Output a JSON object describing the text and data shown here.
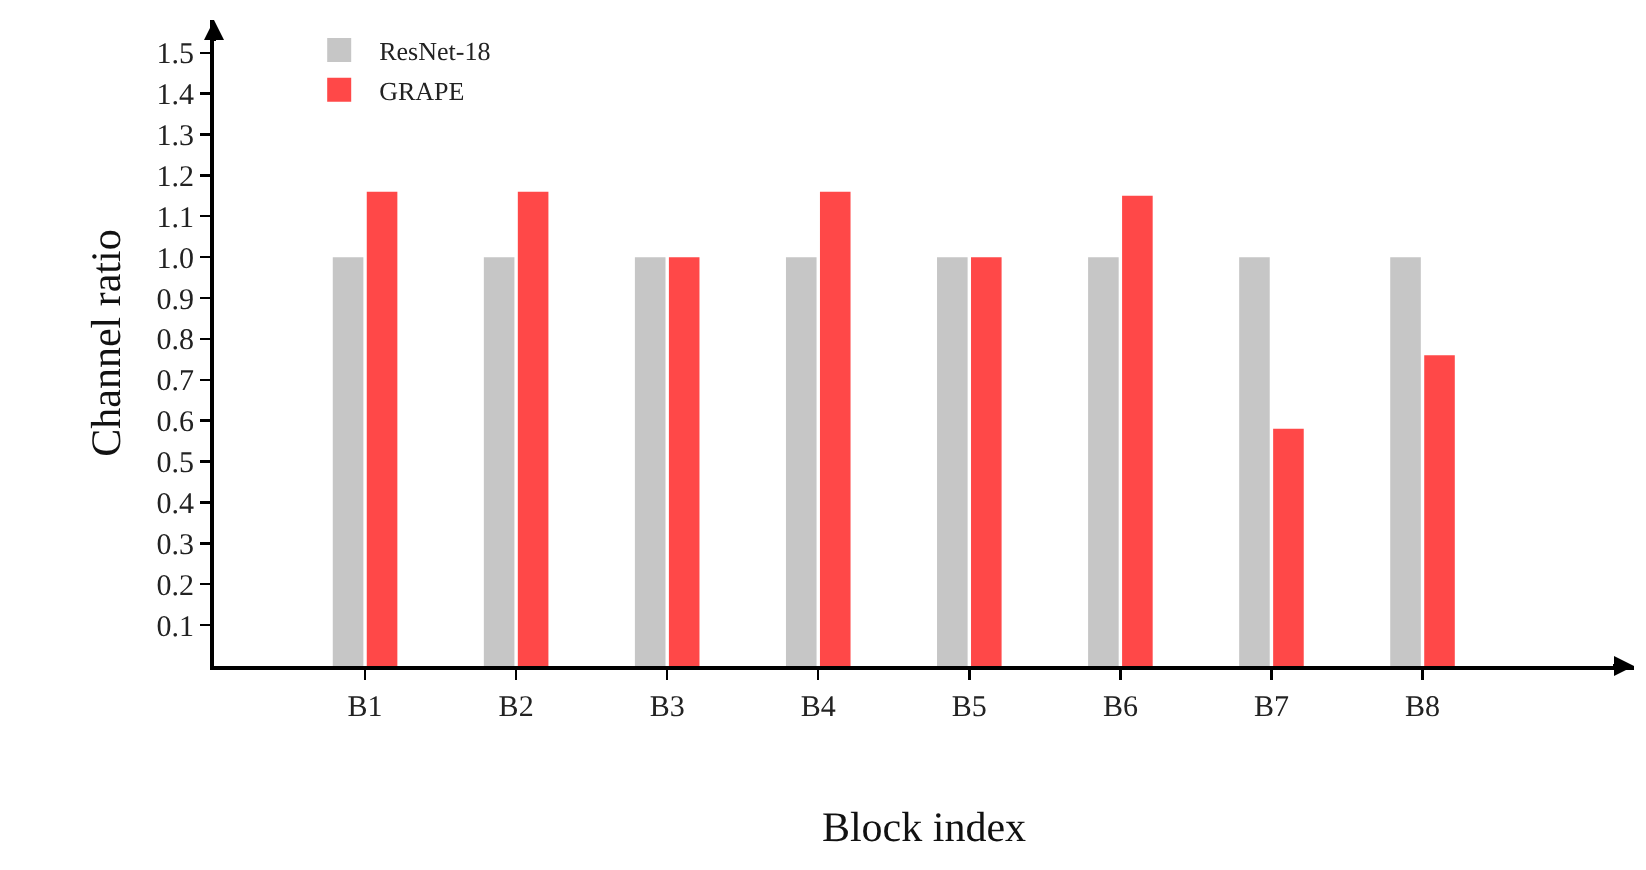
{
  "chart_data": {
    "type": "bar",
    "xlabel": "Block index",
    "ylabel": "Channel ratio",
    "categories": [
      "B1",
      "B2",
      "B3",
      "B4",
      "B5",
      "B6",
      "B7",
      "B8"
    ],
    "series": [
      {
        "name": "ResNet-18",
        "color": "#c6c6c6",
        "values": [
          1.0,
          1.0,
          1.0,
          1.0,
          1.0,
          1.0,
          1.0,
          1.0
        ]
      },
      {
        "name": "GRAPE",
        "color": "#ff4848",
        "values": [
          1.16,
          1.16,
          1.0,
          1.16,
          1.0,
          1.15,
          0.58,
          0.76
        ]
      }
    ],
    "ylim": [
      0,
      1.58
    ],
    "yticks": [
      0.1,
      0.2,
      0.3,
      0.4,
      0.5,
      0.6,
      0.7,
      0.8,
      0.9,
      {
        "value": 1,
        "label": "1.0"
      },
      1.1,
      1.2,
      1.3,
      1.4,
      1.5
    ],
    "grid": false,
    "legend": "top left"
  }
}
